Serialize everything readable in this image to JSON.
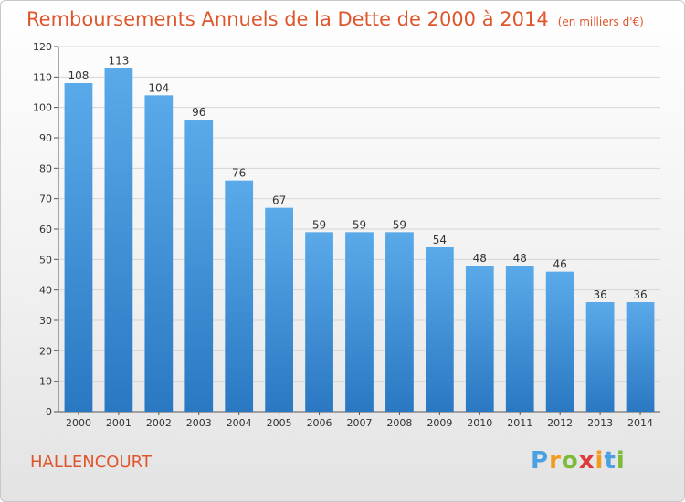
{
  "chart_data": {
    "type": "bar",
    "title": "Remboursements Annuels de la Dette de 2000 à 2014",
    "unit_note": "(en milliers d'€)",
    "categories": [
      "2000",
      "2001",
      "2002",
      "2003",
      "2004",
      "2005",
      "2006",
      "2007",
      "2008",
      "2009",
      "2010",
      "2011",
      "2012",
      "2013",
      "2014"
    ],
    "values": [
      108,
      113,
      104,
      96,
      76,
      67,
      59,
      59,
      59,
      54,
      48,
      48,
      46,
      36,
      36
    ],
    "ylim": [
      0,
      120
    ],
    "yticks": [
      0,
      10,
      20,
      30,
      40,
      50,
      60,
      70,
      80,
      90,
      100,
      110,
      120
    ],
    "xlabel": "",
    "ylabel": "",
    "grid": true,
    "bar_color_top": "#5aaaea",
    "bar_color_bottom": "#2a78c2",
    "text_color": "#e0562c"
  },
  "footer": {
    "city": "HALLENCOURT",
    "logo_letters": [
      "P",
      "r",
      "o",
      "x",
      "i",
      "t",
      "i"
    ],
    "logo_colors": [
      "#4aa0e0",
      "#f29a1c",
      "#7dbb3a",
      "#e03a3a",
      "#f29a1c",
      "#4aa0e0",
      "#7dbb3a"
    ]
  }
}
